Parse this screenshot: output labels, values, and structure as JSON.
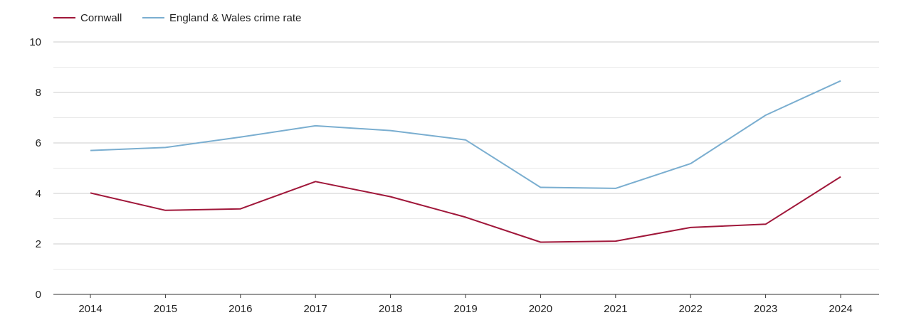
{
  "chart_data": {
    "type": "line",
    "title": "",
    "xlabel": "",
    "ylabel": "",
    "categories": [
      "2014",
      "2015",
      "2016",
      "2017",
      "2018",
      "2019",
      "2020",
      "2021",
      "2022",
      "2023",
      "2024"
    ],
    "ylim": [
      0,
      10
    ],
    "yticks": [
      "0",
      "2",
      "4",
      "6",
      "8",
      "10"
    ],
    "grid": true,
    "legend_position": "top-left",
    "series": [
      {
        "name": "Cornwall",
        "color": "#a0173a",
        "values": [
          4.02,
          3.33,
          3.39,
          4.47,
          3.87,
          3.06,
          2.07,
          2.11,
          2.65,
          2.78,
          4.66
        ]
      },
      {
        "name": "England & Wales crime rate",
        "color": "#7aaed0",
        "values": [
          5.7,
          5.82,
          6.23,
          6.68,
          6.49,
          6.12,
          4.24,
          4.2,
          5.18,
          7.1,
          8.46
        ]
      }
    ]
  }
}
